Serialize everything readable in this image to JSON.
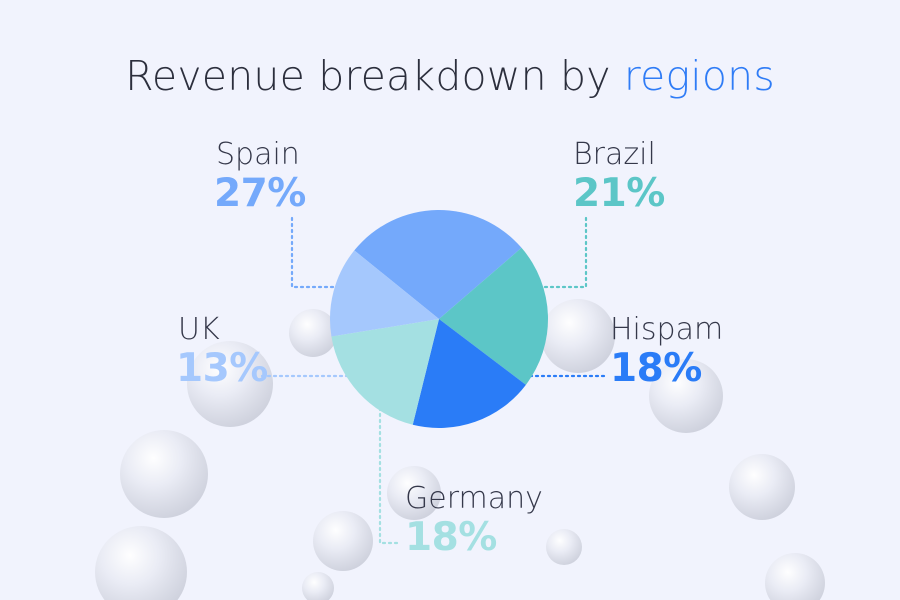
{
  "title": {
    "prefix": "Revenue breakdown by ",
    "highlight": "regions"
  },
  "colors": {
    "background": "#f1f3fd",
    "title_text": "#2c2f3d",
    "title_highlight": "#2f7cf6",
    "label_text": "#35384a"
  },
  "chart_data": {
    "type": "pie",
    "title": "Revenue breakdown by regions",
    "legend": "callouts around pie",
    "slices": [
      {
        "label": "Spain",
        "value": 27,
        "display": "27%",
        "color": "#74a9fb"
      },
      {
        "label": "Brazil",
        "value": 21,
        "display": "21%",
        "color": "#5cc6c7"
      },
      {
        "label": "Hispam",
        "value": 18,
        "display": "18%",
        "color": "#2a7cf7"
      },
      {
        "label": "Germany",
        "value": 18,
        "display": "18%",
        "color": "#a4e0e2"
      },
      {
        "label": "UK",
        "value": 13,
        "display": "13%",
        "color": "#a5c8fd"
      }
    ]
  }
}
